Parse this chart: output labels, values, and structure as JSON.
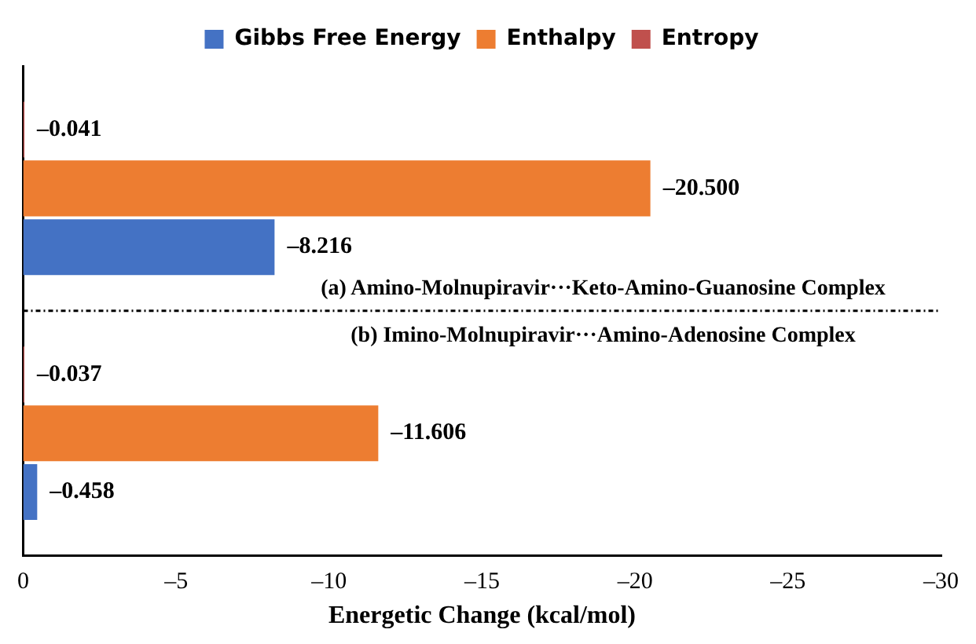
{
  "chart_data": {
    "type": "bar",
    "orientation": "horizontal",
    "categories": [
      null,
      null
    ],
    "series": [
      {
        "name": "Entropy",
        "color": "#c0504d",
        "values": [
          -0.041,
          -0.037
        ],
        "value_labels": [
          "–0.041",
          "–0.037"
        ]
      },
      {
        "name": "Enthalpy",
        "color": "#ed7d31",
        "values": [
          -20.5,
          -11.606
        ],
        "value_labels": [
          "–20.500",
          "–11.606"
        ]
      },
      {
        "name": "Gibbs Free Energy",
        "color": "#4472c4",
        "values": [
          -8.216,
          -0.458
        ],
        "value_labels": [
          "–8.216",
          "–0.458"
        ]
      }
    ],
    "xlim": [
      0,
      -30
    ],
    "xticks": [
      0,
      {
        "value": -5,
        "label": "–5"
      },
      {
        "value": -10,
        "label": "–10"
      },
      {
        "value": -15,
        "label": "–15"
      },
      {
        "value": -20,
        "label": "–20"
      },
      {
        "value": -25,
        "label": "–25"
      },
      {
        "value": -30,
        "label": "–30"
      }
    ],
    "xlabel": "Energetic Change (kcal/mol)",
    "annotations": [
      "(a) Amino-Molnupiravir···Keto-Amino-Guanosine Complex",
      "(b) Imino-Molnupiravir···Amino-Adenosine Complex"
    ],
    "legend": "top",
    "grid": false,
    "tick_labels": "x"
  }
}
